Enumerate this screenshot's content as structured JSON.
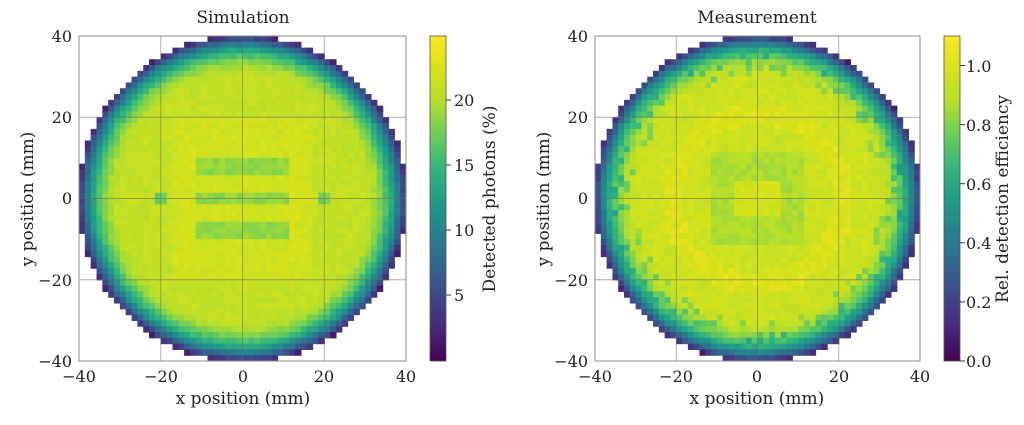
{
  "chart_data": [
    {
      "type": "heatmap",
      "title": "Simulation",
      "xlabel": "x position (mm)",
      "ylabel": "y position (mm)",
      "xlim": [
        -40,
        40
      ],
      "ylim": [
        -40,
        40
      ],
      "x_ticks": [
        "−40",
        "−20",
        "0",
        "20",
        "40"
      ],
      "y_ticks": [
        "40",
        "20",
        "0",
        "−20",
        "−40"
      ],
      "grid": true,
      "colormap": "viridis",
      "detector_radius_mm": 40,
      "colorbar": {
        "label": "Detected photons (%)",
        "range": [
          0,
          25
        ],
        "ticks": [
          "5",
          "10",
          "15",
          "20"
        ]
      },
      "center_value": 21,
      "edge_value": 3,
      "pattern": "ring-with-central-bars"
    },
    {
      "type": "heatmap",
      "title": "Measurement",
      "xlabel": "x position (mm)",
      "ylabel": "y position (mm)",
      "xlim": [
        -40,
        40
      ],
      "ylim": [
        -40,
        40
      ],
      "x_ticks": [
        "−40",
        "−20",
        "0",
        "20",
        "40"
      ],
      "y_ticks": [
        "40",
        "20",
        "0",
        "−20",
        "−40"
      ],
      "grid": true,
      "colormap": "viridis",
      "detector_radius_mm": 40,
      "colorbar": {
        "label": "Rel. detection efficiency",
        "range": [
          0,
          1.1
        ],
        "ticks": [
          "0.0",
          "0.2",
          "0.4",
          "0.6",
          "0.8",
          "1.0"
        ]
      },
      "center_value": 0.95,
      "edge_value": 0.15,
      "pattern": "ring-with-central-square"
    }
  ]
}
